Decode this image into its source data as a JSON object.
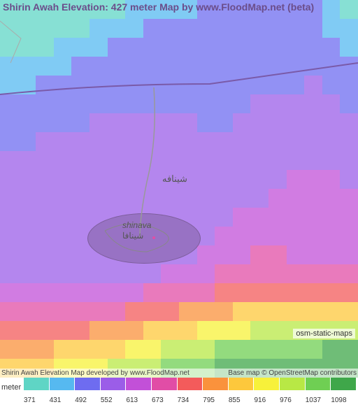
{
  "title": "Shirin Awah Elevation: 427 meter Map by www.FloodMap.net (beta)",
  "credits": {
    "left": "Shirin Awah Elevation Map developed by www.FloodMap.net",
    "right": "Base map © OpenStreetMap contributors"
  },
  "osm_tag": "osm-static-maps",
  "places": {
    "shinava_ar_top": "شينافه",
    "shinava_en": "shinava",
    "shinava_ar_bottom": "شينافا"
  },
  "legend": {
    "unit": "meter",
    "values": [
      "371",
      "431",
      "492",
      "552",
      "613",
      "673",
      "734",
      "795",
      "855",
      "916",
      "976",
      "1037",
      "1098"
    ],
    "colors": [
      "#5fd5c5",
      "#56b9f0",
      "#6e6cf0",
      "#9b5de8",
      "#c250d8",
      "#e14da6",
      "#f35b5b",
      "#fa923c",
      "#fdc83c",
      "#f7f13a",
      "#b8e845",
      "#6fcf53",
      "#3fa74a"
    ]
  },
  "elevation_grid": {
    "cols": 20,
    "rows": 20,
    "data": [
      [
        0,
        0,
        0,
        0,
        0,
        0,
        0,
        1,
        1,
        1,
        1,
        2,
        2,
        2,
        2,
        2,
        2,
        2,
        1,
        0
      ],
      [
        0,
        0,
        0,
        0,
        0,
        1,
        1,
        1,
        2,
        2,
        2,
        2,
        2,
        2,
        2,
        2,
        2,
        2,
        1,
        1
      ],
      [
        0,
        0,
        0,
        1,
        1,
        1,
        2,
        2,
        2,
        2,
        2,
        2,
        2,
        2,
        2,
        2,
        2,
        2,
        2,
        1
      ],
      [
        1,
        1,
        1,
        1,
        2,
        2,
        2,
        2,
        2,
        2,
        2,
        2,
        2,
        2,
        2,
        2,
        2,
        2,
        2,
        2
      ],
      [
        1,
        1,
        2,
        2,
        2,
        2,
        2,
        2,
        2,
        2,
        2,
        2,
        2,
        2,
        2,
        2,
        2,
        3,
        2,
        2
      ],
      [
        2,
        2,
        2,
        2,
        2,
        2,
        2,
        2,
        2,
        2,
        2,
        2,
        2,
        2,
        3,
        3,
        3,
        3,
        3,
        2
      ],
      [
        2,
        2,
        2,
        2,
        2,
        3,
        3,
        3,
        3,
        3,
        3,
        2,
        2,
        3,
        3,
        3,
        3,
        3,
        3,
        3
      ],
      [
        2,
        2,
        3,
        3,
        3,
        3,
        3,
        3,
        3,
        3,
        3,
        3,
        3,
        3,
        3,
        3,
        3,
        3,
        3,
        3
      ],
      [
        3,
        3,
        3,
        3,
        3,
        3,
        3,
        3,
        3,
        3,
        3,
        3,
        3,
        3,
        3,
        3,
        3,
        3,
        3,
        3
      ],
      [
        3,
        3,
        3,
        3,
        3,
        3,
        3,
        3,
        3,
        3,
        3,
        3,
        3,
        3,
        3,
        3,
        4,
        4,
        4,
        3
      ],
      [
        3,
        3,
        3,
        3,
        3,
        3,
        3,
        3,
        3,
        3,
        3,
        3,
        3,
        3,
        3,
        4,
        4,
        4,
        4,
        4
      ],
      [
        3,
        3,
        3,
        3,
        3,
        3,
        3,
        3,
        3,
        3,
        3,
        3,
        3,
        4,
        4,
        4,
        4,
        4,
        4,
        4
      ],
      [
        3,
        3,
        3,
        3,
        3,
        3,
        3,
        3,
        3,
        3,
        3,
        3,
        4,
        4,
        4,
        4,
        4,
        4,
        4,
        4
      ],
      [
        3,
        3,
        3,
        3,
        3,
        3,
        3,
        3,
        3,
        3,
        3,
        4,
        4,
        4,
        5,
        5,
        4,
        4,
        4,
        4
      ],
      [
        3,
        3,
        3,
        3,
        3,
        3,
        3,
        3,
        3,
        4,
        4,
        4,
        5,
        5,
        5,
        5,
        5,
        5,
        5,
        5
      ],
      [
        4,
        4,
        4,
        4,
        4,
        4,
        4,
        4,
        5,
        5,
        5,
        5,
        6,
        6,
        6,
        6,
        6,
        6,
        6,
        6
      ],
      [
        5,
        5,
        5,
        5,
        5,
        5,
        5,
        6,
        6,
        6,
        7,
        7,
        7,
        8,
        8,
        8,
        8,
        8,
        8,
        8
      ],
      [
        6,
        6,
        6,
        6,
        6,
        7,
        7,
        7,
        8,
        8,
        8,
        9,
        9,
        9,
        10,
        10,
        10,
        10,
        10,
        10
      ],
      [
        7,
        7,
        7,
        8,
        8,
        8,
        8,
        9,
        9,
        10,
        10,
        10,
        11,
        11,
        11,
        11,
        11,
        11,
        12,
        12
      ],
      [
        8,
        8,
        8,
        9,
        9,
        9,
        10,
        10,
        10,
        11,
        11,
        11,
        12,
        12,
        12,
        12,
        12,
        12,
        12,
        12
      ]
    ]
  }
}
